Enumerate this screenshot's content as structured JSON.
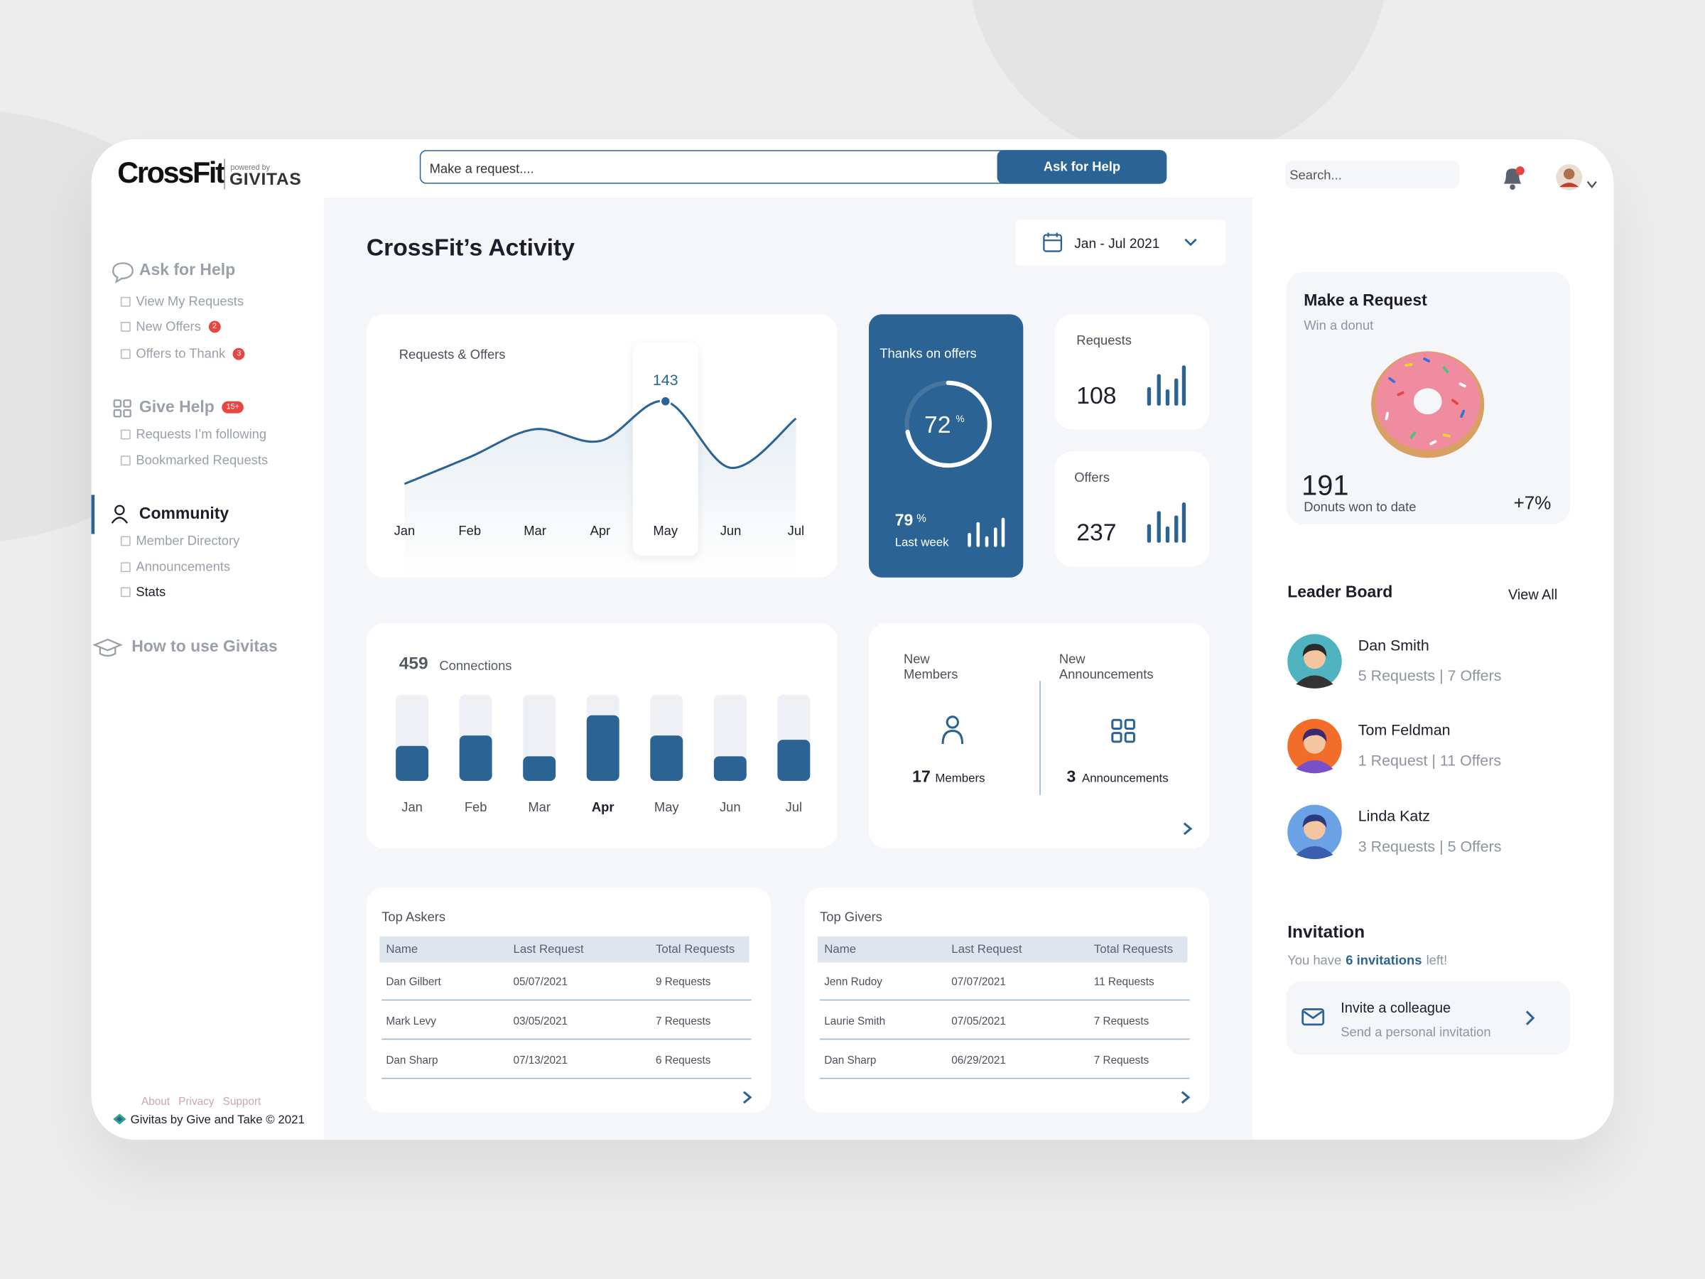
{
  "header": {
    "logo": "CrossFit",
    "powered_by": "powered by",
    "logo_sub": "GIVITAS",
    "request_placeholder": "Make a request....",
    "ask_button": "Ask for Help",
    "search_placeholder": "Search..."
  },
  "sidebar": {
    "sections": [
      {
        "title": "Ask for Help",
        "items": [
          {
            "label": "View My Requests"
          },
          {
            "label": "New Offers",
            "badge": 2
          },
          {
            "label": "Offers to Thank",
            "badge": 3
          }
        ]
      },
      {
        "title": "Give Help",
        "badge": "15+",
        "items": [
          {
            "label": "Requests I’m following"
          },
          {
            "label": "Bookmarked Requests"
          }
        ]
      },
      {
        "title": "Community",
        "active": true,
        "items": [
          {
            "label": "Member Directory"
          },
          {
            "label": "Announcements"
          },
          {
            "label": "Stats",
            "current": true
          }
        ]
      },
      {
        "title": "How to use Givitas",
        "items": []
      }
    ],
    "footer_links": [
      "About",
      "Privacy",
      "Support"
    ],
    "copyright": "Givitas by Give and Take © 2021"
  },
  "main": {
    "title": "CrossFit’s Activity",
    "date_range": "Jan - Jul 2021",
    "requests_offers": {
      "type": "line",
      "title": "Requests & Offers",
      "categories": [
        "Jan",
        "Feb",
        "Mar",
        "Apr",
        "May",
        "Jun",
        "Jul"
      ],
      "values": [
        66,
        91,
        117,
        106,
        143,
        81,
        127
      ],
      "highlight": 4,
      "color": "#2b6494"
    },
    "thanks": {
      "title": "Thanks on offers",
      "percent": 72,
      "unit": "%",
      "last_week": 79,
      "last_week_label": "Last week"
    },
    "requests": {
      "label": "Requests",
      "value": 108
    },
    "offers": {
      "label": "Offers",
      "value": 237
    },
    "connections": {
      "type": "bar",
      "total": 459,
      "total_label": "Connections",
      "categories": [
        "Jan",
        "Feb",
        "Mar",
        "Apr",
        "May",
        "Jun",
        "Jul"
      ],
      "values": [
        57,
        74,
        40,
        107,
        74,
        40,
        67
      ],
      "ylim": [
        0,
        140
      ],
      "highlight": 3,
      "color": "#2b6494"
    },
    "community": {
      "members_title": "New Members",
      "members_count": 17,
      "members_label": "Members",
      "announcements_title": "New Announcements",
      "announcements_count": 3,
      "announcements_label": "Announcements"
    },
    "tables": [
      {
        "title": "Top Askers",
        "columns": [
          "Name",
          "Last Request",
          "Total Requests"
        ],
        "rows": [
          [
            "Dan Gilbert",
            "05/07/2021",
            "9 Requests"
          ],
          [
            "Mark Levy",
            "03/05/2021",
            "7 Requests"
          ],
          [
            "Dan Sharp",
            "07/13/2021",
            "6 Requests"
          ]
        ]
      },
      {
        "title": "Top Givers",
        "columns": [
          "Name",
          "Last Request",
          "Total Requests"
        ],
        "rows": [
          [
            "Jenn Rudoy",
            "07/07/2021",
            "11 Requests"
          ],
          [
            "Laurie Smith",
            "07/05/2021",
            "7 Requests"
          ],
          [
            "Dan Sharp",
            "06/29/2021",
            "7 Requests"
          ]
        ]
      }
    ]
  },
  "right": {
    "donut": {
      "title": "Make a Request",
      "subtitle": "Win a donut",
      "count": 191,
      "count_label": "Donuts won to date",
      "change": "+7%"
    },
    "leaderboard": {
      "title": "Leader Board",
      "view_all": "View All",
      "entries": [
        {
          "name": "Dan Smith",
          "detail": "5 Requests | 7 Offers"
        },
        {
          "name": "Tom Feldman",
          "detail": "1 Request | 11 Offers"
        },
        {
          "name": "Linda Katz",
          "detail": "3 Requests | 5 Offers"
        }
      ]
    },
    "invitation": {
      "title": "Invitation",
      "prefix": "You have",
      "highlight": "6 invitations",
      "suffix": "left!",
      "card_title": "Invite a colleague",
      "card_subtitle": "Send a personal invitation"
    }
  }
}
